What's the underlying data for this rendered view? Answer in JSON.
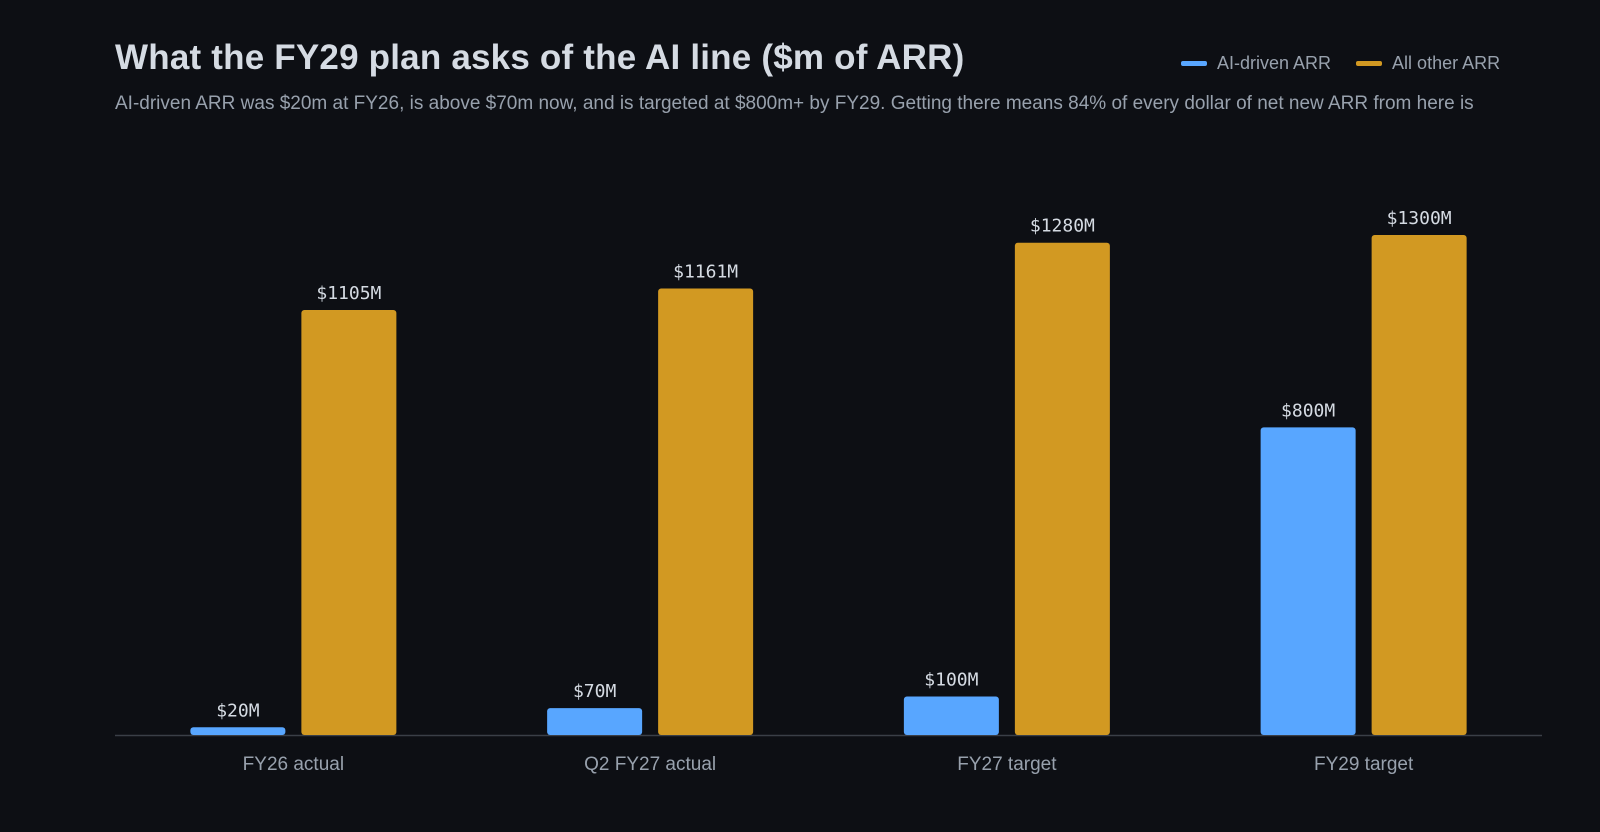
{
  "chart_data": {
    "type": "bar",
    "title": "What the FY29 plan asks of the AI line ($m of ARR)",
    "subtitle": "AI-driven ARR was $20m at FY26, is above $70m now, and is targeted at $800m+ by FY29. Getting there means 84% of every dollar of net new ARR from here is",
    "categories": [
      "FY26 actual",
      "Q2 FY27 actual",
      "FY27 target",
      "FY29 target"
    ],
    "series": [
      {
        "name": "AI-driven ARR",
        "color": "#58a6ff",
        "values": [
          20,
          70,
          100,
          800
        ],
        "labels": [
          "$20M",
          "$70M",
          "$100M",
          "$800M"
        ]
      },
      {
        "name": "All other ARR",
        "color": "#d29922",
        "values": [
          1105,
          1161,
          1280,
          1300
        ],
        "labels": [
          "$1105M",
          "$1161M",
          "$1280M",
          "$1300M"
        ]
      }
    ],
    "ylim": [
      0,
      1400
    ],
    "grid": false,
    "legend_position": "top-right"
  }
}
